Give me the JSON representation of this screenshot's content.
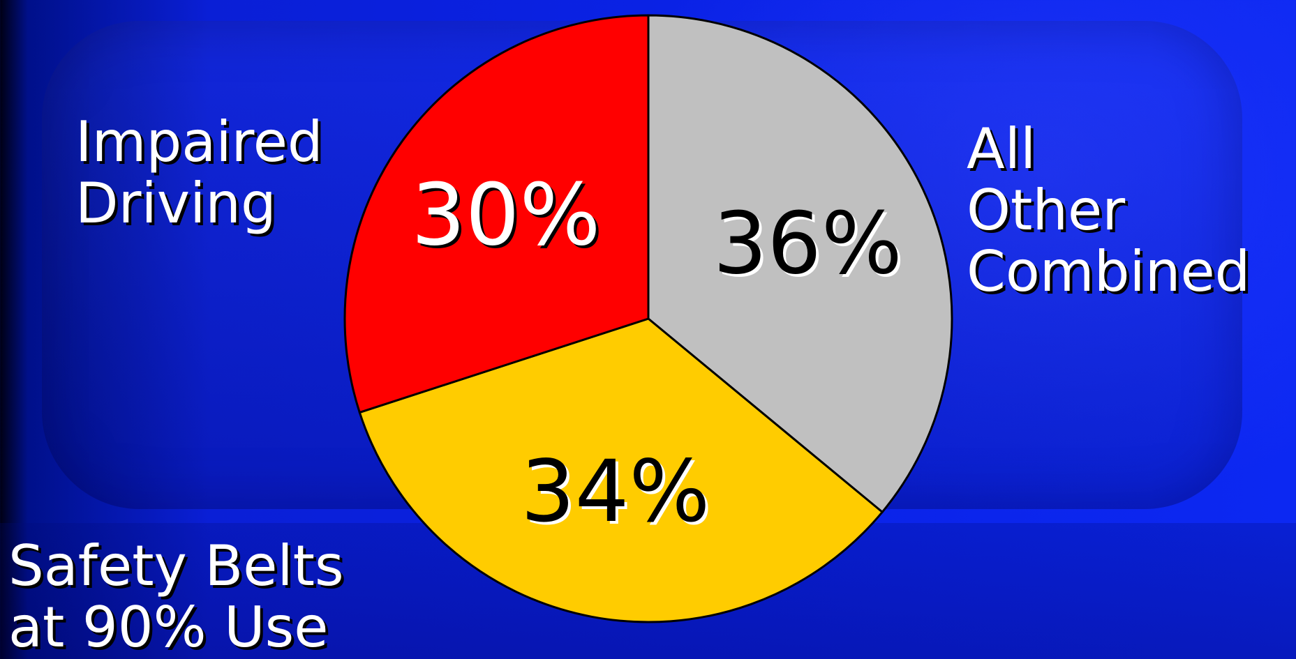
{
  "chart_data": {
    "type": "pie",
    "title": "",
    "slices": [
      {
        "key": "other",
        "label": "All\nOther\nCombined",
        "value": 36,
        "display": "36%",
        "color": "#c0c0c0",
        "text_color": "#000000",
        "text_shadow": "#ffffff"
      },
      {
        "key": "belts",
        "label": "Safety Belts\nat 90% Use",
        "value": 34,
        "display": "34%",
        "color": "#ffcc00",
        "text_color": "#000000",
        "text_shadow": "#ffffff"
      },
      {
        "key": "impaired",
        "label": "Impaired\nDriving",
        "value": 30,
        "display": "30%",
        "color": "#ff0000",
        "text_color": "#ffffff",
        "text_shadow": "#000000"
      }
    ],
    "start_angle_deg": 0,
    "direction": "clockwise",
    "legend": "none"
  },
  "colors": {
    "background": "#0a22e6",
    "label_text": "#ffffff",
    "slice_outline": "#000000"
  }
}
